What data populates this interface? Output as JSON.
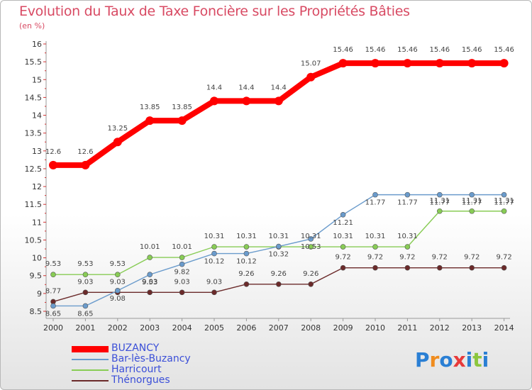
{
  "chart_data": {
    "type": "line",
    "title": "Evolution du Taux de Taxe Foncière sur les Propriétés Bâties",
    "unit_label": "(en %)",
    "xlabel": "",
    "ylabel": "",
    "categories": [
      "2000",
      "2001",
      "2002",
      "2003",
      "2004",
      "2005",
      "2006",
      "2007",
      "2008",
      "2009",
      "2010",
      "2011",
      "2012",
      "2013",
      "2014"
    ],
    "ylim": [
      8.5,
      16
    ],
    "yticks": [
      "8.5",
      "9",
      "9.5",
      "10",
      "10.5",
      "11",
      "11.5",
      "12",
      "12.5",
      "13",
      "13.5",
      "14",
      "14.5",
      "15",
      "15.5",
      "16"
    ],
    "grid": false,
    "legend_position": "bottom-left",
    "series": [
      {
        "name": "BUZANCY",
        "color": "#ff0000",
        "values": [
          12.6,
          12.6,
          13.25,
          13.85,
          13.85,
          14.4,
          14.4,
          14.4,
          15.07,
          15.46,
          15.46,
          15.46,
          15.46,
          15.46,
          15.46
        ],
        "labels": [
          "12.6",
          "12.6",
          "13.25",
          "13.85",
          "13.85",
          "14.4",
          "14.4",
          "14.4",
          "15.07",
          "15.46",
          "15.46",
          "15.46",
          "15.46",
          "15.46",
          "15.46"
        ]
      },
      {
        "name": "Bar-lès-Buzancy",
        "color": "#6a9bcc",
        "values": [
          8.65,
          8.65,
          9.08,
          9.53,
          9.82,
          10.12,
          10.12,
          10.32,
          10.53,
          11.21,
          11.77,
          11.77,
          11.77,
          11.77,
          11.77
        ],
        "labels": [
          "8.65",
          "8.65",
          "9.08",
          "9.53",
          "9.82",
          "10.12",
          "10.12",
          "10.32",
          "10.53",
          "11.21",
          "11.77",
          "11.77",
          "11.77",
          "11.77",
          "11.77"
        ]
      },
      {
        "name": "Harricourt",
        "color": "#88cc55",
        "values": [
          9.53,
          9.53,
          9.53,
          10.01,
          10.01,
          10.31,
          10.31,
          10.31,
          10.31,
          10.31,
          10.31,
          10.31,
          11.31,
          11.31,
          11.31
        ],
        "labels": [
          "9.53",
          "9.53",
          "9.53",
          "10.01",
          "10.01",
          "10.31",
          "10.31",
          "10.31",
          "10.31",
          "10.31",
          "10.31",
          "10.31",
          "11.31",
          "11.31",
          "11.31"
        ]
      },
      {
        "name": "Thénorgues",
        "color": "#6b2a2a",
        "values": [
          8.77,
          9.03,
          9.03,
          9.03,
          9.03,
          9.03,
          9.26,
          9.26,
          9.26,
          9.72,
          9.72,
          9.72,
          9.72,
          9.72,
          9.72
        ],
        "labels": [
          "8.77",
          "9.03",
          "9.03",
          "9.03",
          "9.03",
          "9.03",
          "9.26",
          "9.26",
          "9.26",
          "9.72",
          "9.72",
          "9.72",
          "9.72",
          "9.72",
          "9.72"
        ]
      }
    ]
  },
  "logo": {
    "text": "Proxiti"
  }
}
